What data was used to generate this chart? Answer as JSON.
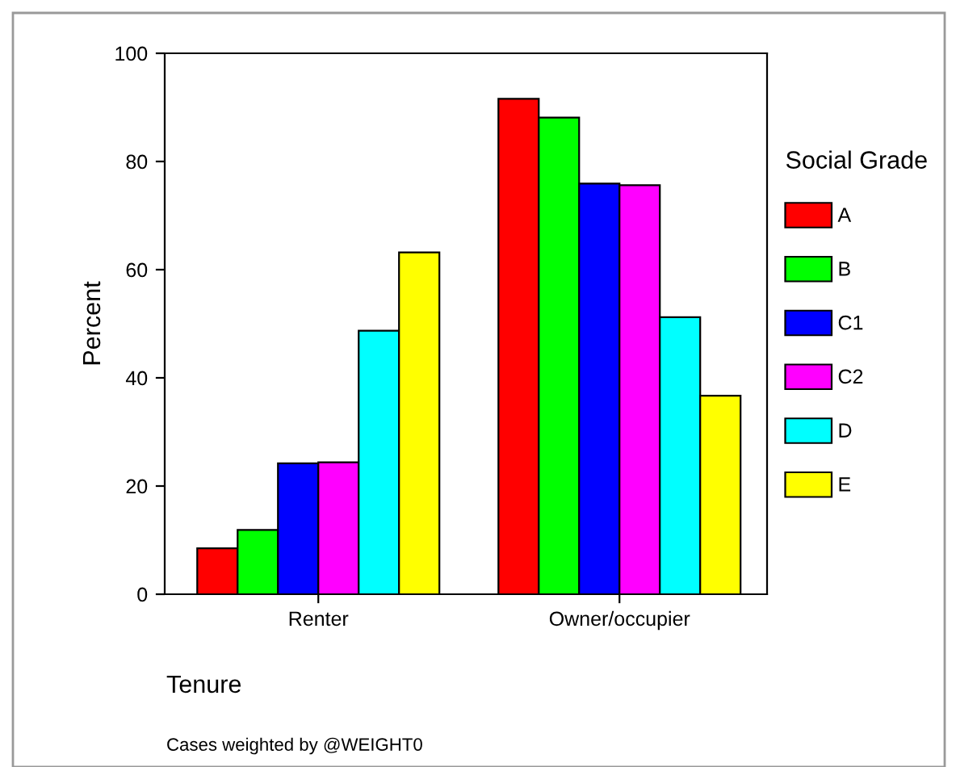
{
  "chart_data": {
    "type": "bar",
    "xlabel": "Tenure",
    "ylabel": "Percent",
    "legend_title": "Social Grade",
    "categories": [
      "Renter",
      "Owner/occupier"
    ],
    "series": [
      {
        "name": "A",
        "color": "#ff0000",
        "values": [
          8.5,
          91.6
        ]
      },
      {
        "name": "B",
        "color": "#00ff00",
        "values": [
          11.9,
          88.1
        ]
      },
      {
        "name": "C1",
        "color": "#0000ff",
        "values": [
          24.2,
          75.9
        ]
      },
      {
        "name": "C2",
        "color": "#ff00ff",
        "values": [
          24.4,
          75.6
        ]
      },
      {
        "name": "D",
        "color": "#00ffff",
        "values": [
          48.7,
          51.2
        ]
      },
      {
        "name": "E",
        "color": "#ffff00",
        "values": [
          63.2,
          36.7
        ]
      }
    ],
    "ylim": [
      0,
      100
    ],
    "yticks": [
      0,
      20,
      40,
      60,
      80,
      100
    ],
    "grid": false,
    "legend": "right",
    "annotations": [
      "Cases weighted by @WEIGHT0"
    ]
  }
}
